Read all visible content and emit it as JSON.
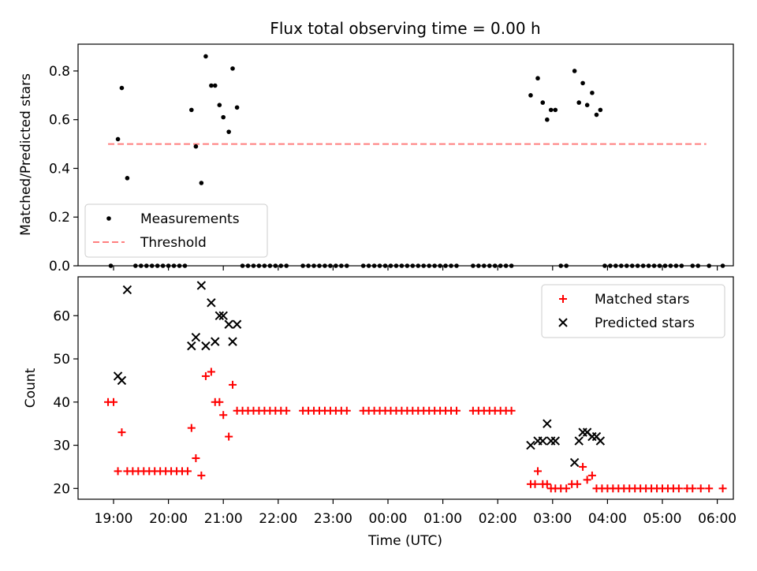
{
  "chart_data": [
    {
      "type": "scatter",
      "title": "Flux total observing time = 0.00 h",
      "ylabel": "Matched/Predicted stars",
      "xlabel": "",
      "x_unit": "hours since 19:00 UTC",
      "ylim": [
        0,
        0.91
      ],
      "yticks": [
        "0.0",
        "0.2",
        "0.4",
        "0.6",
        "0.8"
      ],
      "legend_location": "lower-left",
      "series": [
        {
          "name": "Measurements",
          "color": "#000000",
          "points": [
            [
              -0.05,
              0
            ],
            [
              0.08,
              0.52
            ],
            [
              0.15,
              0.73
            ],
            [
              0.25,
              0.36
            ],
            [
              0.4,
              0
            ],
            [
              0.5,
              0
            ],
            [
              0.6,
              0
            ],
            [
              0.7,
              0
            ],
            [
              0.8,
              0
            ],
            [
              0.9,
              0
            ],
            [
              1.0,
              0
            ],
            [
              1.1,
              0
            ],
            [
              1.2,
              0
            ],
            [
              1.3,
              0
            ],
            [
              1.42,
              0.64
            ],
            [
              1.5,
              0.49
            ],
            [
              1.6,
              0.34
            ],
            [
              1.68,
              0.86
            ],
            [
              1.78,
              0.74
            ],
            [
              1.85,
              0.74
            ],
            [
              1.93,
              0.66
            ],
            [
              2.0,
              0.61
            ],
            [
              2.1,
              0.55
            ],
            [
              2.17,
              0.81
            ],
            [
              2.25,
              0.65
            ],
            [
              2.35,
              0
            ],
            [
              2.45,
              0
            ],
            [
              2.55,
              0
            ],
            [
              2.65,
              0
            ],
            [
              2.75,
              0
            ],
            [
              2.85,
              0
            ],
            [
              2.95,
              0
            ],
            [
              3.05,
              0
            ],
            [
              3.15,
              0
            ],
            [
              3.45,
              0
            ],
            [
              3.55,
              0
            ],
            [
              3.65,
              0
            ],
            [
              3.75,
              0
            ],
            [
              3.85,
              0
            ],
            [
              3.95,
              0
            ],
            [
              4.05,
              0
            ],
            [
              4.15,
              0
            ],
            [
              4.25,
              0
            ],
            [
              4.55,
              0
            ],
            [
              4.65,
              0
            ],
            [
              4.75,
              0
            ],
            [
              4.85,
              0
            ],
            [
              4.95,
              0
            ],
            [
              5.05,
              0
            ],
            [
              5.15,
              0
            ],
            [
              5.25,
              0
            ],
            [
              5.35,
              0
            ],
            [
              5.45,
              0
            ],
            [
              5.55,
              0
            ],
            [
              5.65,
              0
            ],
            [
              5.75,
              0
            ],
            [
              5.85,
              0
            ],
            [
              5.95,
              0
            ],
            [
              6.05,
              0
            ],
            [
              6.15,
              0
            ],
            [
              6.25,
              0
            ],
            [
              6.55,
              0
            ],
            [
              6.65,
              0
            ],
            [
              6.75,
              0
            ],
            [
              6.85,
              0
            ],
            [
              6.95,
              0
            ],
            [
              7.05,
              0
            ],
            [
              7.15,
              0
            ],
            [
              7.25,
              0
            ],
            [
              7.6,
              0.7
            ],
            [
              7.73,
              0.77
            ],
            [
              7.82,
              0.67
            ],
            [
              7.9,
              0.6
            ],
            [
              7.97,
              0.64
            ],
            [
              8.05,
              0.64
            ],
            [
              8.15,
              0
            ],
            [
              8.25,
              0
            ],
            [
              8.4,
              0.8
            ],
            [
              8.48,
              0.67
            ],
            [
              8.55,
              0.75
            ],
            [
              8.63,
              0.66
            ],
            [
              8.72,
              0.71
            ],
            [
              8.8,
              0.62
            ],
            [
              8.87,
              0.64
            ],
            [
              8.95,
              0
            ],
            [
              9.05,
              0
            ],
            [
              9.15,
              0
            ],
            [
              9.25,
              0
            ],
            [
              9.35,
              0
            ],
            [
              9.45,
              0
            ],
            [
              9.55,
              0
            ],
            [
              9.65,
              0
            ],
            [
              9.75,
              0
            ],
            [
              9.85,
              0
            ],
            [
              9.95,
              0
            ],
            [
              10.05,
              0
            ],
            [
              10.15,
              0
            ],
            [
              10.25,
              0
            ],
            [
              10.35,
              0
            ],
            [
              10.55,
              0
            ],
            [
              10.65,
              0
            ],
            [
              10.85,
              0
            ],
            [
              11.1,
              0
            ]
          ]
        },
        {
          "name": "Threshold",
          "color": "#ff7f7f",
          "style": "dashed",
          "points": [
            [
              -0.1,
              0.5
            ],
            [
              10.8,
              0.5
            ]
          ]
        }
      ]
    },
    {
      "type": "scatter",
      "xlabel": "Time (UTC)",
      "ylabel": "Count",
      "x_unit": "hours since 19:00 UTC",
      "xticks": [
        "19:00",
        "20:00",
        "21:00",
        "22:00",
        "23:00",
        "00:00",
        "01:00",
        "02:00",
        "03:00",
        "04:00",
        "05:00",
        "06:00"
      ],
      "ylim": [
        17.5,
        69
      ],
      "yticks": [
        "20",
        "30",
        "40",
        "50",
        "60"
      ],
      "legend_location": "upper-right",
      "series": [
        {
          "name": "Matched stars",
          "marker": "plus",
          "color": "#ff0000",
          "points": [
            [
              -0.1,
              40
            ],
            [
              0.0,
              40
            ],
            [
              0.08,
              24
            ],
            [
              0.15,
              33
            ],
            [
              0.25,
              24
            ],
            [
              0.35,
              24
            ],
            [
              0.45,
              24
            ],
            [
              0.55,
              24
            ],
            [
              0.65,
              24
            ],
            [
              0.75,
              24
            ],
            [
              0.85,
              24
            ],
            [
              0.95,
              24
            ],
            [
              1.05,
              24
            ],
            [
              1.15,
              24
            ],
            [
              1.25,
              24
            ],
            [
              1.35,
              24
            ],
            [
              1.42,
              34
            ],
            [
              1.5,
              27
            ],
            [
              1.6,
              23
            ],
            [
              1.68,
              46
            ],
            [
              1.78,
              47
            ],
            [
              1.85,
              40
            ],
            [
              1.93,
              40
            ],
            [
              2.0,
              37
            ],
            [
              2.1,
              32
            ],
            [
              2.17,
              44
            ],
            [
              2.25,
              38
            ],
            [
              2.35,
              38
            ],
            [
              2.45,
              38
            ],
            [
              2.55,
              38
            ],
            [
              2.65,
              38
            ],
            [
              2.75,
              38
            ],
            [
              2.85,
              38
            ],
            [
              2.95,
              38
            ],
            [
              3.05,
              38
            ],
            [
              3.15,
              38
            ],
            [
              3.45,
              38
            ],
            [
              3.55,
              38
            ],
            [
              3.65,
              38
            ],
            [
              3.75,
              38
            ],
            [
              3.85,
              38
            ],
            [
              3.95,
              38
            ],
            [
              4.05,
              38
            ],
            [
              4.15,
              38
            ],
            [
              4.25,
              38
            ],
            [
              4.55,
              38
            ],
            [
              4.65,
              38
            ],
            [
              4.75,
              38
            ],
            [
              4.85,
              38
            ],
            [
              4.95,
              38
            ],
            [
              5.05,
              38
            ],
            [
              5.15,
              38
            ],
            [
              5.25,
              38
            ],
            [
              5.35,
              38
            ],
            [
              5.45,
              38
            ],
            [
              5.55,
              38
            ],
            [
              5.65,
              38
            ],
            [
              5.75,
              38
            ],
            [
              5.85,
              38
            ],
            [
              5.95,
              38
            ],
            [
              6.05,
              38
            ],
            [
              6.15,
              38
            ],
            [
              6.25,
              38
            ],
            [
              6.55,
              38
            ],
            [
              6.65,
              38
            ],
            [
              6.75,
              38
            ],
            [
              6.85,
              38
            ],
            [
              6.95,
              38
            ],
            [
              7.05,
              38
            ],
            [
              7.15,
              38
            ],
            [
              7.25,
              38
            ],
            [
              7.6,
              21
            ],
            [
              7.68,
              21
            ],
            [
              7.73,
              24
            ],
            [
              7.82,
              21
            ],
            [
              7.9,
              21
            ],
            [
              7.97,
              20
            ],
            [
              8.05,
              20
            ],
            [
              8.15,
              20
            ],
            [
              8.25,
              20
            ],
            [
              8.35,
              21
            ],
            [
              8.45,
              21
            ],
            [
              8.55,
              25
            ],
            [
              8.63,
              22
            ],
            [
              8.72,
              23
            ],
            [
              8.8,
              20
            ],
            [
              8.9,
              20
            ],
            [
              9.0,
              20
            ],
            [
              9.1,
              20
            ],
            [
              9.2,
              20
            ],
            [
              9.3,
              20
            ],
            [
              9.4,
              20
            ],
            [
              9.5,
              20
            ],
            [
              9.6,
              20
            ],
            [
              9.7,
              20
            ],
            [
              9.8,
              20
            ],
            [
              9.9,
              20
            ],
            [
              10.0,
              20
            ],
            [
              10.1,
              20
            ],
            [
              10.2,
              20
            ],
            [
              10.3,
              20
            ],
            [
              10.45,
              20
            ],
            [
              10.55,
              20
            ],
            [
              10.7,
              20
            ],
            [
              10.85,
              20
            ],
            [
              11.1,
              20
            ]
          ]
        },
        {
          "name": "Predicted stars",
          "marker": "x",
          "color": "#000000",
          "points": [
            [
              0.08,
              46
            ],
            [
              0.15,
              45
            ],
            [
              0.25,
              66
            ],
            [
              1.42,
              53
            ],
            [
              1.5,
              55
            ],
            [
              1.6,
              67
            ],
            [
              1.68,
              53
            ],
            [
              1.78,
              63
            ],
            [
              1.85,
              54
            ],
            [
              1.93,
              60
            ],
            [
              2.0,
              60
            ],
            [
              2.1,
              58
            ],
            [
              2.17,
              54
            ],
            [
              2.25,
              58
            ],
            [
              7.6,
              30
            ],
            [
              7.73,
              31
            ],
            [
              7.82,
              31
            ],
            [
              7.9,
              35
            ],
            [
              7.97,
              31
            ],
            [
              8.05,
              31
            ],
            [
              8.4,
              26
            ],
            [
              8.48,
              31
            ],
            [
              8.55,
              33
            ],
            [
              8.63,
              33
            ],
            [
              8.72,
              32
            ],
            [
              8.8,
              32
            ],
            [
              8.87,
              31
            ]
          ]
        }
      ]
    }
  ]
}
